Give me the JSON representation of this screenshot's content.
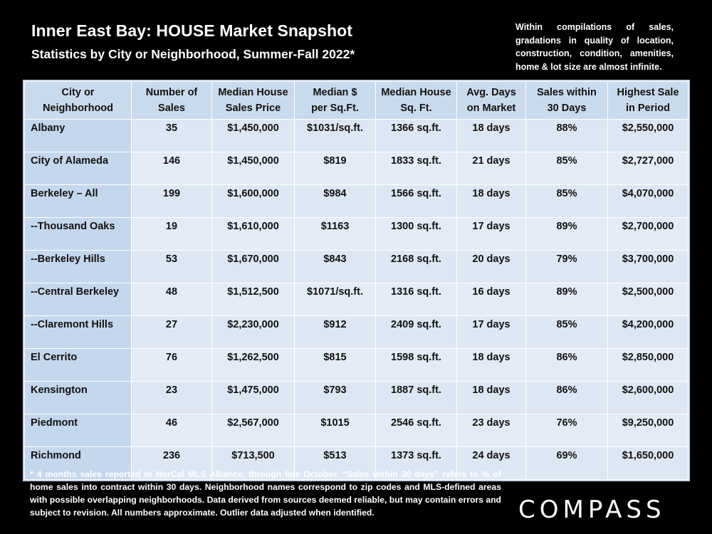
{
  "header": {
    "title": "Inner East Bay: HOUSE Market Snapshot",
    "subtitle": "Statistics by City or Neighborhood, Summer-Fall 2022*",
    "note": "Within compilations of sales, gradations in quality of location, construction, condition, amenities, home & lot size are almost infinite."
  },
  "table": {
    "columns": [
      [
        "City or",
        "Neighborhood"
      ],
      [
        "Number of",
        "Sales"
      ],
      [
        "Median House",
        "Sales Price"
      ],
      [
        "Median $",
        "per Sq.Ft."
      ],
      [
        "Median House",
        "Sq. Ft."
      ],
      [
        "Avg. Days",
        "on Market"
      ],
      [
        "Sales within",
        "30 Days"
      ],
      [
        "Highest Sale",
        "in Period"
      ]
    ],
    "rows": [
      [
        "Albany",
        "35",
        "$1,450,000",
        "$1031/sq.ft.",
        "1366 sq.ft.",
        "18 days",
        "88%",
        "$2,550,000"
      ],
      [
        "City of Alameda",
        "146",
        "$1,450,000",
        "$819",
        "1833 sq.ft.",
        "21 days",
        "85%",
        "$2,727,000"
      ],
      [
        "Berkeley – All",
        "199",
        "$1,600,000",
        "$984",
        "1566 sq.ft.",
        "18 days",
        "85%",
        "$4,070,000"
      ],
      [
        "--Thousand Oaks",
        "19",
        "$1,610,000",
        "$1163",
        "1300 sq.ft.",
        "17 days",
        "89%",
        "$2,700,000"
      ],
      [
        "--Berkeley Hills",
        "53",
        "$1,670,000",
        "$843",
        "2168 sq.ft.",
        "20 days",
        "79%",
        "$3,700,000"
      ],
      [
        "--Central Berkeley",
        "48",
        "$1,512,500",
        "$1071/sq.ft.",
        "1316 sq.ft.",
        "16 days",
        "89%",
        "$2,500,000"
      ],
      [
        "--Claremont Hills",
        "27",
        "$2,230,000",
        "$912",
        "2409 sq.ft.",
        "17 days",
        "85%",
        "$4,200,000"
      ],
      [
        "El Cerrito",
        "76",
        "$1,262,500",
        "$815",
        "1598 sq.ft.",
        "18 days",
        "86%",
        "$2,850,000"
      ],
      [
        "Kensington",
        "23",
        "$1,475,000",
        "$793",
        "1887 sq.ft.",
        "18 days",
        "86%",
        "$2,600,000"
      ],
      [
        "Piedmont",
        "46",
        "$2,567,000",
        "$1015",
        "2546 sq.ft.",
        "23 days",
        "76%",
        "$9,250,000"
      ],
      [
        "Richmond",
        "236",
        "$713,500",
        "$513",
        "1373 sq.ft.",
        "24 days",
        "69%",
        "$1,650,000"
      ]
    ]
  },
  "footnote": "* 4 months sales reported to NorCal MLS Alliance, through late October. “Sales within 30 days” refers to % of home sales into contract within 30 days. Neighborhood names correspond to zip codes and MLS-defined areas with possible overlapping neighborhoods. Data derived from sources deemed reliable, but may contain errors and subject to revision. All numbers approximate. Outlier data adjusted when identified.",
  "logo": "COMPASS",
  "colors": {
    "background": "#000000",
    "header_cell": "#c9daec",
    "name_cell": "#c4d7ec",
    "data_cell": "#e3ebf6"
  }
}
